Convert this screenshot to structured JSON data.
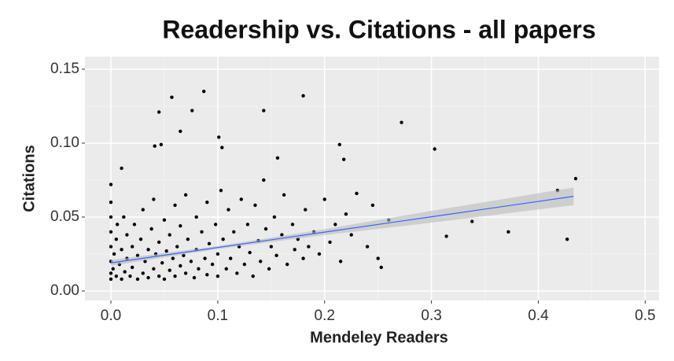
{
  "chart_data": {
    "type": "scatter",
    "title": "Readership vs. Citations - all papers",
    "xlabel": "Mendeley Readers",
    "ylabel": "Citations",
    "xlim": [
      -0.0243,
      0.513
    ],
    "ylim": [
      -0.0064,
      0.1585
    ],
    "xticks": [
      {
        "value": 0,
        "label": "0.0"
      },
      0.1,
      0.2,
      0.3,
      0.4,
      0.5
    ],
    "yticks": [
      {
        "value": 0,
        "label": "0.00"
      },
      0.05,
      {
        "value": 0.1,
        "label": "0.10"
      },
      0.15
    ],
    "x_minor_grid": [
      0.05,
      0.15,
      0.25,
      0.35,
      0.45
    ],
    "y_minor_grid": [
      0.025,
      0.075,
      0.125
    ],
    "grid": true,
    "color": "#000000",
    "series": [
      {
        "x": [
          0.0,
          0.0,
          0.0,
          0.0,
          0.0,
          0.0,
          0.0,
          0.0,
          0.002,
          0.003,
          0.005,
          0.005,
          0.006,
          0.008,
          0.01,
          0.01,
          0.012,
          0.013,
          0.015,
          0.015,
          0.018,
          0.02,
          0.02,
          0.022,
          0.025,
          0.025,
          0.028,
          0.03,
          0.03,
          0.032,
          0.035,
          0.035,
          0.038,
          0.04,
          0.04,
          0.042,
          0.045,
          0.045,
          0.048,
          0.05,
          0.05,
          0.052,
          0.055,
          0.055,
          0.058,
          0.06,
          0.06,
          0.062,
          0.065,
          0.065,
          0.068,
          0.07,
          0.07,
          0.072,
          0.075,
          0.078,
          0.08,
          0.08,
          0.082,
          0.085,
          0.088,
          0.09,
          0.09,
          0.092,
          0.095,
          0.098,
          0.1,
          0.1,
          0.103,
          0.105,
          0.108,
          0.11,
          0.112,
          0.115,
          0.118,
          0.12,
          0.122,
          0.125,
          0.128,
          0.13,
          0.133,
          0.135,
          0.138,
          0.14,
          0.143,
          0.145,
          0.148,
          0.15,
          0.153,
          0.155,
          0.16,
          0.162,
          0.165,
          0.17,
          0.172,
          0.175,
          0.18,
          0.182,
          0.185,
          0.19,
          0.195,
          0.2,
          0.205,
          0.21,
          0.215,
          0.22,
          0.225,
          0.23,
          0.24,
          0.245,
          0.25,
          0.26,
          0.087,
          0.057,
          0.045,
          0.076,
          0.18,
          0.143,
          0.272,
          0.065,
          0.101,
          0.104,
          0.041,
          0.047,
          0.303,
          0.214,
          0.218,
          0.156,
          0.01,
          0.435,
          0.418,
          0.427,
          0.314,
          0.372,
          0.338,
          0.253
        ],
        "values": [
          0.008,
          0.012,
          0.02,
          0.03,
          0.04,
          0.05,
          0.06,
          0.072,
          0.015,
          0.025,
          0.01,
          0.035,
          0.045,
          0.018,
          0.028,
          0.008,
          0.05,
          0.013,
          0.022,
          0.038,
          0.01,
          0.03,
          0.016,
          0.045,
          0.008,
          0.024,
          0.035,
          0.012,
          0.055,
          0.02,
          0.028,
          0.009,
          0.042,
          0.015,
          0.062,
          0.025,
          0.01,
          0.033,
          0.019,
          0.048,
          0.008,
          0.027,
          0.014,
          0.038,
          0.022,
          0.058,
          0.01,
          0.03,
          0.017,
          0.044,
          0.024,
          0.012,
          0.065,
          0.035,
          0.02,
          0.009,
          0.028,
          0.05,
          0.015,
          0.04,
          0.022,
          0.011,
          0.06,
          0.032,
          0.018,
          0.045,
          0.025,
          0.01,
          0.068,
          0.035,
          0.015,
          0.055,
          0.022,
          0.04,
          0.012,
          0.03,
          0.062,
          0.018,
          0.045,
          0.026,
          0.01,
          0.058,
          0.034,
          0.02,
          0.075,
          0.042,
          0.015,
          0.03,
          0.05,
          0.024,
          0.038,
          0.065,
          0.018,
          0.045,
          0.028,
          0.035,
          0.022,
          0.055,
          0.03,
          0.04,
          0.025,
          0.062,
          0.033,
          0.045,
          0.02,
          0.052,
          0.038,
          0.066,
          0.03,
          0.058,
          0.022,
          0.048,
          0.135,
          0.131,
          0.121,
          0.122,
          0.132,
          0.122,
          0.114,
          0.108,
          0.104,
          0.097,
          0.098,
          0.099,
          0.096,
          0.099,
          0.089,
          0.09,
          0.083,
          0.076,
          0.068,
          0.035,
          0.037,
          0.04,
          0.047,
          0.016
        ]
      }
    ],
    "smooth": {
      "color": "#3366ff",
      "band_color": "#bbbbbb",
      "x": [
        0,
        0.1,
        0.2,
        0.3,
        0.433
      ],
      "y": [
        0.019,
        0.0294,
        0.0398,
        0.0502,
        0.064
      ],
      "ymin": [
        0.017,
        0.0284,
        0.0378,
        0.0462,
        0.058
      ],
      "ymax": [
        0.021,
        0.0304,
        0.0418,
        0.0542,
        0.07
      ]
    }
  }
}
